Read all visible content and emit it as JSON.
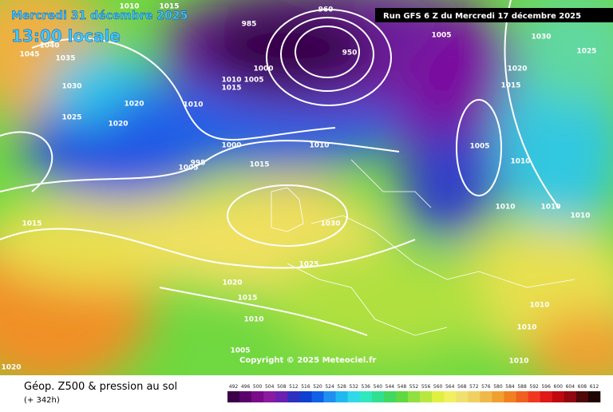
{
  "header": {
    "date": "Mercredi 31 décembre 2025",
    "time": "13:00 locale",
    "run": "Run GFS 6 Z du Mercredi 17 décembre 2025"
  },
  "copyright": "Copyright © 2025 Meteociel.fr",
  "footer": {
    "title": "Géop. Z500 & pression au sol",
    "lead": "(+ 342h)"
  },
  "colorbar": {
    "values": [
      492,
      496,
      500,
      504,
      508,
      512,
      516,
      520,
      524,
      528,
      532,
      536,
      540,
      544,
      548,
      552,
      556,
      560,
      564,
      568,
      572,
      576,
      580,
      584,
      588,
      592,
      596,
      600,
      604,
      608,
      612
    ],
    "colors": [
      "#3a0048",
      "#5a006a",
      "#7a0a8a",
      "#8a1aa0",
      "#6a20b0",
      "#3030c0",
      "#1040d0",
      "#1060e8",
      "#2090f0",
      "#20b8f0",
      "#30d8e8",
      "#30e8c0",
      "#30e090",
      "#40d860",
      "#60d840",
      "#90e040",
      "#b8e840",
      "#e0f040",
      "#f0f060",
      "#f0e070",
      "#f0d060",
      "#f0b848",
      "#f0a030",
      "#f08020",
      "#f06020",
      "#f03820",
      "#e01818",
      "#c00810",
      "#900810",
      "#500808",
      "#200404"
    ]
  },
  "isobars": [
    1010,
    1015,
    1045,
    1040,
    1035,
    1030,
    1020,
    1025,
    1020,
    985,
    1015,
    1010,
    1005,
    1000,
    1010,
    1000,
    1005,
    995,
    1015,
    1010,
    1005,
    1030,
    1025,
    1020,
    1015,
    1005,
    1010,
    1010,
    1010,
    1010,
    1015,
    1030,
    1025,
    1020,
    1015,
    1010,
    1010,
    1010,
    1005,
    1010,
    1020,
    950,
    960
  ]
}
